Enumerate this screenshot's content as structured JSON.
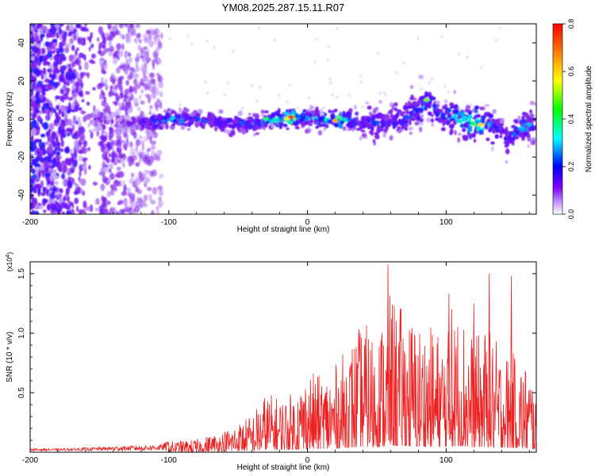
{
  "title": "YM08.2025.287.15.11.R07",
  "chart_data": [
    {
      "type": "heatmap",
      "title": "YM08.2025.287.15.11.R07",
      "xlabel": "Height of straight line (km)",
      "ylabel": "Frequency (Hz)",
      "xlim": [
        -200,
        165
      ],
      "ylim": [
        -50,
        50
      ],
      "xticks": [
        -200,
        -100,
        0,
        100
      ],
      "yticks": [
        -40,
        -20,
        0,
        20,
        40
      ],
      "colorbar": {
        "label": "Normalized spectral amplitude",
        "range": [
          0,
          0.8
        ],
        "ticks": [
          0.0,
          0.2,
          0.4,
          0.6,
          0.8
        ],
        "colors": [
          "#ffffff",
          "#7f00ff",
          "#0000ff",
          "#00ffff",
          "#00ff00",
          "#ffff00",
          "#ff7f00",
          "#ff0000"
        ]
      },
      "signal_trace": {
        "x": [
          -155,
          -140,
          -120,
          -100,
          -80,
          -60,
          -40,
          -20,
          -10,
          0,
          20,
          40,
          60,
          75,
          88,
          95,
          110,
          120,
          130,
          145,
          155,
          165
        ],
        "freq": [
          0,
          -2,
          -2,
          0,
          0,
          -2,
          -3,
          0,
          1,
          0,
          0,
          -2,
          -2,
          2,
          10,
          2,
          0,
          -3,
          -2,
          -10,
          -4,
          -2
        ],
        "peak_amplitude": [
          0.2,
          0.15,
          0.3,
          0.45,
          0.4,
          0.35,
          0.4,
          0.55,
          0.75,
          0.4,
          0.7,
          0.3,
          0.35,
          0.4,
          0.4,
          0.35,
          0.5,
          0.65,
          0.45,
          0.35,
          0.45,
          0.3
        ]
      }
    },
    {
      "type": "line",
      "xlabel": "Height of straight line (km)",
      "ylabel": "SNR (10 * v/v)",
      "y_multiplier": "(x10",
      "y_exponent": "4",
      "y_multiplier_close": ")",
      "xlim": [
        -200,
        165
      ],
      "ylim": [
        0,
        1.6
      ],
      "xticks": [
        -200,
        -100,
        0,
        100
      ],
      "yticks": [
        0.5,
        1.0,
        1.5
      ],
      "color": "#ee2222",
      "envelope": {
        "x": [
          -200,
          -180,
          -160,
          -140,
          -120,
          -105,
          -100,
          -80,
          -60,
          -40,
          -30,
          -20,
          -10,
          0,
          10,
          20,
          30,
          40,
          50,
          60,
          70,
          80,
          90,
          100,
          110,
          120,
          130,
          140,
          150,
          160,
          165
        ],
        "y": [
          0.02,
          0.02,
          0.03,
          0.04,
          0.05,
          0.06,
          0.1,
          0.12,
          0.2,
          0.35,
          0.55,
          0.5,
          0.55,
          0.75,
          0.7,
          0.8,
          1.0,
          1.2,
          1.1,
          1.45,
          1.3,
          1.2,
          1.15,
          1.1,
          1.35,
          1.05,
          1.15,
          0.95,
          0.9,
          0.8,
          0.6
        ]
      },
      "annotated_peaks": [
        {
          "x": 58,
          "y": 1.58
        },
        {
          "x": 102,
          "y": 1.33
        },
        {
          "x": 104,
          "y": 1.2
        },
        {
          "x": 120,
          "y": 1.25
        },
        {
          "x": 131,
          "y": 1.5
        },
        {
          "x": 147,
          "y": 1.48
        }
      ]
    }
  ]
}
